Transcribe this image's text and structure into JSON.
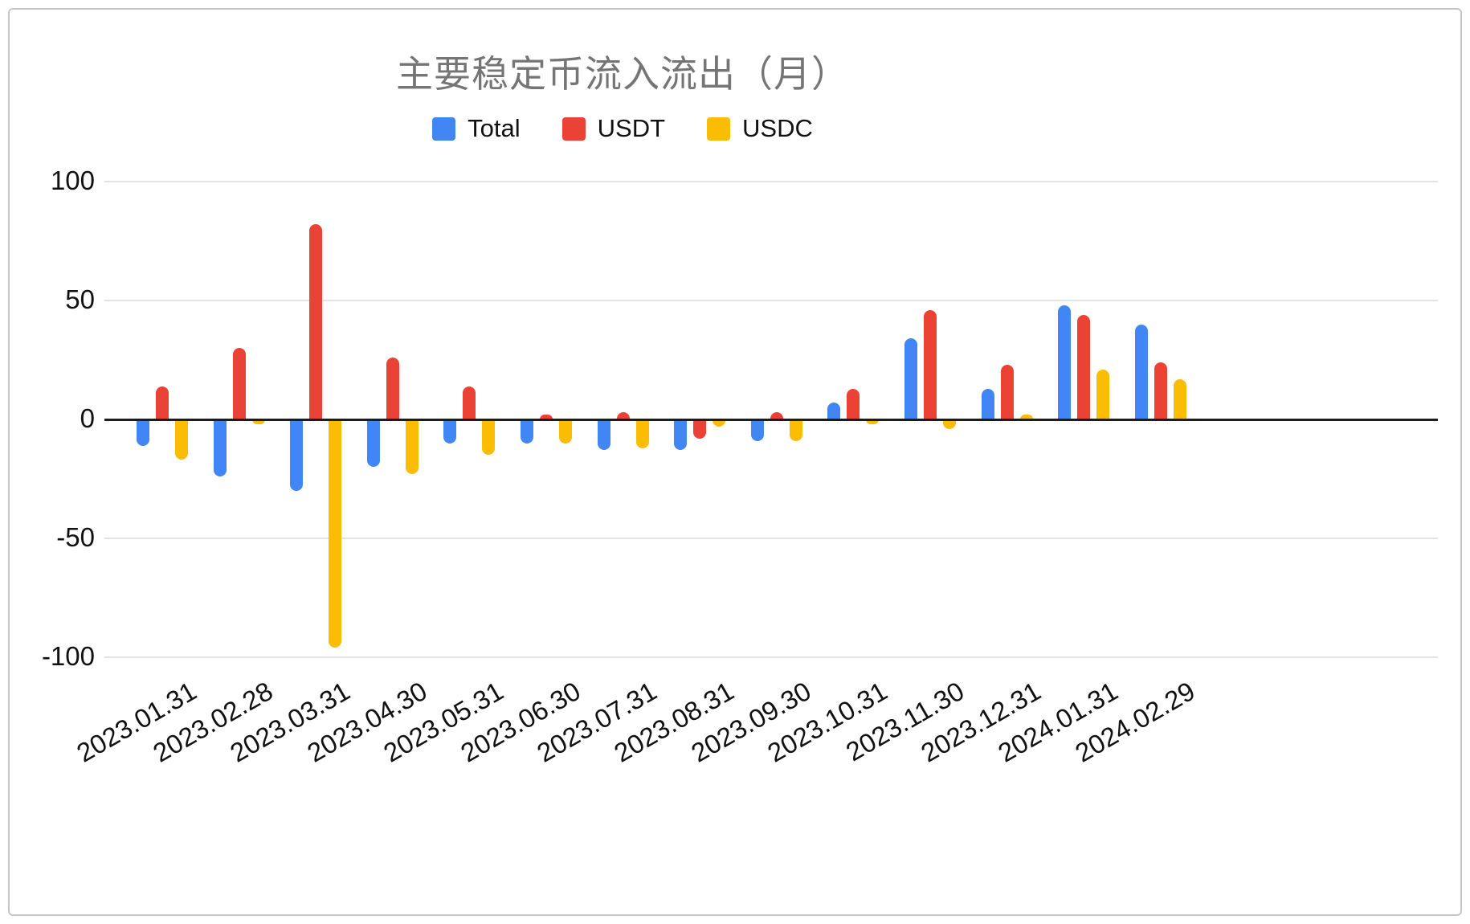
{
  "chart_data": {
    "type": "bar",
    "title": "主要稳定币流入流出（月）",
    "legend_position": "top",
    "grid": "horizontal",
    "ylim": [
      -100,
      100
    ],
    "yticks": [
      100,
      50,
      0,
      -50,
      -100
    ],
    "categories": [
      "2023.01.31",
      "2023.02.28",
      "2023.03.31",
      "2023.04.30",
      "2023.05.31",
      "2023.06.30",
      "2023.07.31",
      "2023.08.31",
      "2023.09.30",
      "2023.10.31",
      "2023.11.30",
      "2023.12.31",
      "2024.01.31",
      "2024.02.29"
    ],
    "series": [
      {
        "name": "Total",
        "color": "#4285F4",
        "values": [
          -11,
          -24,
          -30,
          -20,
          -10,
          -10,
          -13,
          -13,
          -9,
          7,
          34,
          13,
          48,
          40
        ]
      },
      {
        "name": "USDT",
        "color": "#EA4335",
        "values": [
          14,
          30,
          82,
          26,
          14,
          2,
          3,
          -8,
          3,
          13,
          46,
          23,
          44,
          24
        ]
      },
      {
        "name": "USDC",
        "color": "#FBBC04",
        "values": [
          -17,
          -2,
          -96,
          -23,
          -15,
          -10,
          -12,
          -3,
          -9,
          -2,
          -4,
          2,
          21,
          17
        ]
      }
    ],
    "colors": {
      "title": "#757575",
      "axis_text": "#111111",
      "gridline": "#e3e3e3",
      "zero_line": "#1c1c1c"
    }
  }
}
